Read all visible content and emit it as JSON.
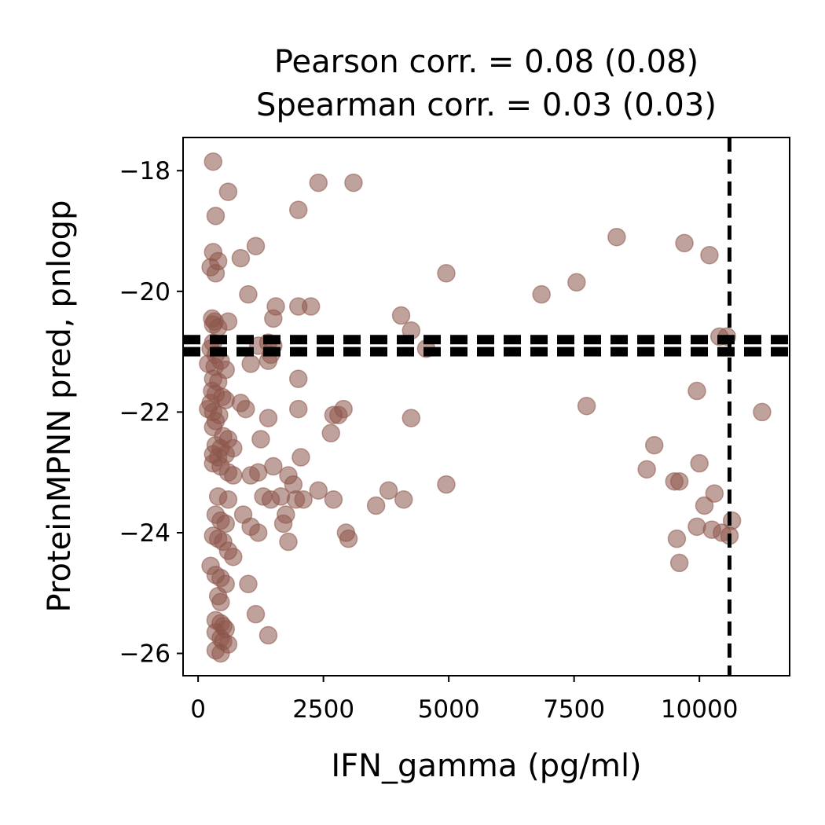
{
  "chart_data": {
    "type": "scatter",
    "title_lines": [
      "Pearson corr. = 0.08 (0.08)",
      "Spearman corr. = 0.03 (0.03)"
    ],
    "xlabel": "IFN_gamma (pg/ml)",
    "ylabel": "ProteinMPNN pred, pnlogp",
    "xlim": [
      -300,
      11800
    ],
    "ylim": [
      -26.37,
      -17.45
    ],
    "xticks": [
      0,
      2500,
      5000,
      7500,
      10000
    ],
    "xtick_labels": [
      "0",
      "2500",
      "5000",
      "7500",
      "10000"
    ],
    "yticks": [
      -18,
      -20,
      -22,
      -24,
      -26
    ],
    "ytick_labels": [
      "−18",
      "−20",
      "−22",
      "−24",
      "−26"
    ],
    "grid": false,
    "marker_color": "#8c564b",
    "marker_alpha": 0.55,
    "reference_lines": {
      "vertical_x": 10600,
      "horizontal_y": [
        -20.8,
        -21.0
      ]
    },
    "points": [
      [
        300,
        -17.85
      ],
      [
        350,
        -18.75
      ],
      [
        600,
        -18.35
      ],
      [
        300,
        -19.35
      ],
      [
        400,
        -19.5
      ],
      [
        350,
        -19.7
      ],
      [
        250,
        -19.6
      ],
      [
        850,
        -19.45
      ],
      [
        1150,
        -19.25
      ],
      [
        1000,
        -20.05
      ],
      [
        280,
        -20.45
      ],
      [
        330,
        -20.5
      ],
      [
        300,
        -20.55
      ],
      [
        400,
        -20.6
      ],
      [
        600,
        -20.5
      ],
      [
        300,
        -20.85
      ],
      [
        250,
        -20.95
      ],
      [
        350,
        -21.05
      ],
      [
        200,
        -21.2
      ],
      [
        330,
        -21.25
      ],
      [
        450,
        -21.15
      ],
      [
        550,
        -21.3
      ],
      [
        300,
        -21.45
      ],
      [
        400,
        -21.5
      ],
      [
        280,
        -21.65
      ],
      [
        350,
        -21.7
      ],
      [
        480,
        -21.75
      ],
      [
        550,
        -21.8
      ],
      [
        250,
        -21.85
      ],
      [
        200,
        -21.95
      ],
      [
        300,
        -22.0
      ],
      [
        420,
        -22.05
      ],
      [
        350,
        -22.15
      ],
      [
        300,
        -22.25
      ],
      [
        500,
        -22.4
      ],
      [
        600,
        -22.45
      ],
      [
        350,
        -22.55
      ],
      [
        450,
        -22.6
      ],
      [
        700,
        -22.6
      ],
      [
        300,
        -22.7
      ],
      [
        400,
        -22.75
      ],
      [
        550,
        -22.7
      ],
      [
        300,
        -22.85
      ],
      [
        450,
        -22.9
      ],
      [
        600,
        -23.0
      ],
      [
        700,
        -23.05
      ],
      [
        400,
        -23.4
      ],
      [
        600,
        -23.45
      ],
      [
        350,
        -23.7
      ],
      [
        450,
        -23.8
      ],
      [
        550,
        -23.85
      ],
      [
        300,
        -24.05
      ],
      [
        400,
        -24.1
      ],
      [
        500,
        -24.15
      ],
      [
        600,
        -24.3
      ],
      [
        700,
        -24.4
      ],
      [
        250,
        -24.55
      ],
      [
        350,
        -24.7
      ],
      [
        450,
        -24.75
      ],
      [
        550,
        -24.85
      ],
      [
        400,
        -25.05
      ],
      [
        450,
        -25.15
      ],
      [
        350,
        -25.45
      ],
      [
        450,
        -25.5
      ],
      [
        500,
        -25.55
      ],
      [
        550,
        -25.6
      ],
      [
        350,
        -25.65
      ],
      [
        450,
        -25.75
      ],
      [
        500,
        -25.8
      ],
      [
        600,
        -25.85
      ],
      [
        350,
        -25.95
      ],
      [
        450,
        -26.0
      ],
      [
        1050,
        -21.2
      ],
      [
        1200,
        -20.9
      ],
      [
        1400,
        -20.85
      ],
      [
        1500,
        -20.9
      ],
      [
        1450,
        -21.05
      ],
      [
        1400,
        -21.15
      ],
      [
        1500,
        -20.45
      ],
      [
        1550,
        -20.25
      ],
      [
        2000,
        -20.25
      ],
      [
        2250,
        -20.25
      ],
      [
        2000,
        -18.65
      ],
      [
        2400,
        -18.2
      ],
      [
        3100,
        -18.2
      ],
      [
        850,
        -21.85
      ],
      [
        950,
        -21.95
      ],
      [
        1400,
        -22.1
      ],
      [
        1250,
        -22.45
      ],
      [
        1050,
        -23.05
      ],
      [
        1200,
        -23.0
      ],
      [
        1500,
        -22.9
      ],
      [
        1800,
        -23.05
      ],
      [
        1900,
        -23.2
      ],
      [
        2050,
        -22.75
      ],
      [
        2000,
        -21.95
      ],
      [
        2000,
        -21.45
      ],
      [
        2650,
        -22.35
      ],
      [
        2700,
        -22.05
      ],
      [
        2800,
        -22.05
      ],
      [
        2900,
        -21.95
      ],
      [
        1300,
        -23.4
      ],
      [
        1450,
        -23.45
      ],
      [
        1650,
        -23.4
      ],
      [
        1950,
        -23.45
      ],
      [
        2100,
        -23.45
      ],
      [
        2400,
        -23.3
      ],
      [
        2700,
        -23.45
      ],
      [
        900,
        -23.7
      ],
      [
        1050,
        -23.9
      ],
      [
        1200,
        -24.0
      ],
      [
        1700,
        -23.85
      ],
      [
        1750,
        -23.7
      ],
      [
        1800,
        -24.15
      ],
      [
        1000,
        -24.85
      ],
      [
        1150,
        -25.35
      ],
      [
        1400,
        -25.7
      ],
      [
        2950,
        -24.0
      ],
      [
        3000,
        -24.1
      ],
      [
        3550,
        -23.55
      ],
      [
        3800,
        -23.3
      ],
      [
        4100,
        -23.45
      ],
      [
        4050,
        -20.4
      ],
      [
        4250,
        -20.65
      ],
      [
        4550,
        -20.95
      ],
      [
        4250,
        -22.1
      ],
      [
        4950,
        -23.2
      ],
      [
        4950,
        -19.7
      ],
      [
        6850,
        -20.05
      ],
      [
        7550,
        -19.85
      ],
      [
        7750,
        -21.9
      ],
      [
        8350,
        -19.1
      ],
      [
        8950,
        -22.95
      ],
      [
        9100,
        -22.55
      ],
      [
        9500,
        -23.15
      ],
      [
        9600,
        -23.15
      ],
      [
        9550,
        -24.1
      ],
      [
        9600,
        -24.5
      ],
      [
        9700,
        -19.2
      ],
      [
        9950,
        -21.65
      ],
      [
        10000,
        -22.85
      ],
      [
        9950,
        -23.9
      ],
      [
        10100,
        -23.55
      ],
      [
        10200,
        -19.4
      ],
      [
        10300,
        -23.35
      ],
      [
        10250,
        -23.95
      ],
      [
        10450,
        -24.0
      ],
      [
        10400,
        -20.75
      ],
      [
        10550,
        -20.75
      ],
      [
        10600,
        -24.05
      ],
      [
        10650,
        -23.8
      ],
      [
        11250,
        -22.0
      ]
    ]
  }
}
